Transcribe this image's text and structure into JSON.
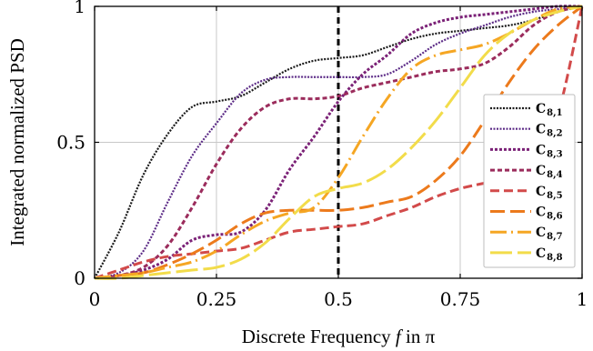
{
  "chart_data": {
    "type": "line",
    "xlabel_prefix": "Discrete Frequency ",
    "xlabel_var": "f",
    "xlabel_suffix": " in π",
    "ylabel": "Integrated normalized PSD",
    "xlim": [
      0,
      1
    ],
    "ylim": [
      0,
      1
    ],
    "xticks": [
      0,
      0.25,
      0.5,
      0.75,
      1
    ],
    "xtick_labels": [
      "0",
      "0.25",
      "0.5",
      "0.75",
      "1"
    ],
    "yticks": [
      0,
      0.5,
      1
    ],
    "ytick_labels": [
      "0",
      "0.5",
      "1"
    ],
    "grid": true,
    "legend_position": "right",
    "vertical_marker": {
      "x": 0.5,
      "color": "#000000"
    },
    "series": [
      {
        "base": "C",
        "sub": "8,1",
        "color": "#1a1a1a",
        "dash": "2,1.5",
        "width": 2.2,
        "x": [
          0,
          0.05,
          0.1,
          0.15,
          0.2,
          0.25,
          0.3,
          0.35,
          0.4,
          0.45,
          0.5,
          0.55,
          0.6,
          0.65,
          0.7,
          0.75,
          0.8,
          0.85,
          0.9,
          0.95,
          1
        ],
        "y": [
          0,
          0.17,
          0.38,
          0.53,
          0.63,
          0.65,
          0.67,
          0.72,
          0.77,
          0.8,
          0.81,
          0.82,
          0.85,
          0.88,
          0.9,
          0.91,
          0.92,
          0.93,
          0.95,
          0.98,
          1
        ]
      },
      {
        "base": "C",
        "sub": "8,2",
        "color": "#5b2a86",
        "dash": "2,1.5",
        "width": 2.2,
        "x": [
          0,
          0.05,
          0.1,
          0.15,
          0.2,
          0.25,
          0.3,
          0.35,
          0.4,
          0.45,
          0.5,
          0.55,
          0.6,
          0.65,
          0.7,
          0.75,
          0.8,
          0.85,
          0.9,
          0.95,
          1
        ],
        "y": [
          0,
          0.02,
          0.1,
          0.28,
          0.45,
          0.57,
          0.68,
          0.73,
          0.74,
          0.74,
          0.74,
          0.74,
          0.75,
          0.8,
          0.86,
          0.9,
          0.93,
          0.96,
          0.98,
          0.99,
          1
        ]
      },
      {
        "base": "C",
        "sub": "8,3",
        "color": "#7b2277",
        "dash": "3,2",
        "width": 3,
        "x": [
          0,
          0.05,
          0.1,
          0.15,
          0.2,
          0.25,
          0.3,
          0.35,
          0.4,
          0.45,
          0.5,
          0.55,
          0.6,
          0.65,
          0.7,
          0.75,
          0.8,
          0.85,
          0.9,
          0.95,
          1
        ],
        "y": [
          0,
          0.01,
          0.03,
          0.07,
          0.14,
          0.16,
          0.17,
          0.25,
          0.4,
          0.52,
          0.65,
          0.75,
          0.82,
          0.9,
          0.94,
          0.96,
          0.97,
          0.98,
          0.99,
          1,
          1
        ]
      },
      {
        "base": "C",
        "sub": "8,4",
        "color": "#9b2c5c",
        "dash": "5,3",
        "width": 3,
        "x": [
          0,
          0.05,
          0.1,
          0.15,
          0.2,
          0.25,
          0.3,
          0.35,
          0.4,
          0.45,
          0.5,
          0.55,
          0.6,
          0.65,
          0.7,
          0.75,
          0.8,
          0.85,
          0.9,
          0.95,
          1
        ],
        "y": [
          0,
          0.01,
          0.04,
          0.12,
          0.26,
          0.42,
          0.55,
          0.63,
          0.66,
          0.66,
          0.67,
          0.7,
          0.72,
          0.74,
          0.76,
          0.77,
          0.79,
          0.85,
          0.93,
          0.98,
          1
        ]
      },
      {
        "base": "C",
        "sub": "8,5",
        "color": "#d24a4a",
        "dash": "10,5",
        "width": 3,
        "x": [
          0,
          0.05,
          0.1,
          0.15,
          0.2,
          0.25,
          0.3,
          0.35,
          0.4,
          0.45,
          0.5,
          0.55,
          0.6,
          0.65,
          0.7,
          0.75,
          0.8,
          0.85,
          0.9,
          0.95,
          1
        ],
        "y": [
          0,
          0.03,
          0.06,
          0.08,
          0.09,
          0.1,
          0.11,
          0.14,
          0.17,
          0.18,
          0.19,
          0.2,
          0.23,
          0.26,
          0.3,
          0.33,
          0.35,
          0.37,
          0.42,
          0.6,
          1
        ]
      },
      {
        "base": "C",
        "sub": "8,6",
        "color": "#ec7a1c",
        "dash": "16,6",
        "width": 3,
        "x": [
          0,
          0.05,
          0.1,
          0.15,
          0.2,
          0.25,
          0.3,
          0.35,
          0.4,
          0.45,
          0.5,
          0.55,
          0.6,
          0.65,
          0.7,
          0.75,
          0.8,
          0.85,
          0.9,
          0.95,
          1
        ],
        "y": [
          0,
          0.01,
          0.02,
          0.05,
          0.09,
          0.14,
          0.2,
          0.24,
          0.25,
          0.25,
          0.25,
          0.26,
          0.28,
          0.3,
          0.36,
          0.45,
          0.58,
          0.72,
          0.84,
          0.93,
          1
        ]
      },
      {
        "base": "C",
        "sub": "8,7",
        "color": "#f5a623",
        "dash": "18,5,2,5",
        "width": 3,
        "x": [
          0,
          0.05,
          0.1,
          0.15,
          0.2,
          0.25,
          0.3,
          0.35,
          0.4,
          0.45,
          0.5,
          0.55,
          0.6,
          0.65,
          0.7,
          0.75,
          0.8,
          0.85,
          0.9,
          0.95,
          1
        ],
        "y": [
          0,
          0.01,
          0.02,
          0.04,
          0.06,
          0.1,
          0.16,
          0.21,
          0.24,
          0.26,
          0.37,
          0.52,
          0.66,
          0.77,
          0.82,
          0.84,
          0.86,
          0.9,
          0.95,
          0.99,
          1
        ]
      },
      {
        "base": "C",
        "sub": "8,8",
        "color": "#f2dc4a",
        "dash": "24,6",
        "width": 3,
        "x": [
          0,
          0.05,
          0.1,
          0.15,
          0.2,
          0.25,
          0.3,
          0.35,
          0.4,
          0.45,
          0.5,
          0.55,
          0.6,
          0.65,
          0.7,
          0.75,
          0.8,
          0.85,
          0.9,
          0.95,
          1
        ],
        "y": [
          0,
          0.0,
          0.01,
          0.02,
          0.03,
          0.04,
          0.07,
          0.13,
          0.22,
          0.3,
          0.33,
          0.35,
          0.4,
          0.48,
          0.58,
          0.7,
          0.82,
          0.9,
          0.95,
          0.98,
          1
        ]
      }
    ]
  }
}
